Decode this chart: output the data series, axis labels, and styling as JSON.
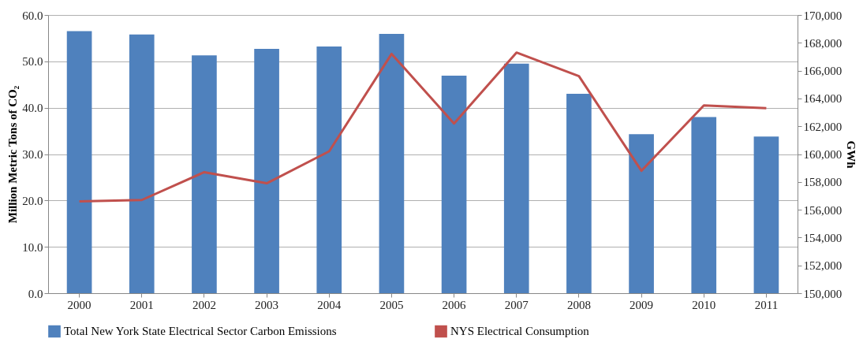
{
  "chart_data": {
    "type": "bar",
    "ylabel": "Million Metric Tons of CO₂",
    "y2label": "GWh",
    "categories": [
      "2000",
      "2001",
      "2002",
      "2003",
      "2004",
      "2005",
      "2006",
      "2007",
      "2008",
      "2009",
      "2010",
      "2011"
    ],
    "series": [
      {
        "name": "Total New York State Electrical Sector Carbon Emissions",
        "color": "#4f81bd",
        "values": [
          56.5,
          55.8,
          51.3,
          52.7,
          53.2,
          55.9,
          46.9,
          49.5,
          43.0,
          34.3,
          38.0,
          33.8
        ]
      },
      {
        "name": "NYS Electrical Consumption",
        "type": "line",
        "axis": "y2",
        "color": "#c0504d",
        "values": [
          156600,
          156700,
          158700,
          157900,
          160200,
          167200,
          162200,
          167300,
          165600,
          158800,
          163500,
          163300
        ]
      }
    ],
    "ylim": [
      0,
      60
    ],
    "yticks": [
      {
        "value": 0,
        "label": "0.0"
      },
      {
        "value": 10,
        "label": "10.0"
      },
      {
        "value": 20,
        "label": "20.0"
      },
      {
        "value": 30,
        "label": "30.0"
      },
      {
        "value": 40,
        "label": "40.0"
      },
      {
        "value": 50,
        "label": "50.0"
      },
      {
        "value": 60,
        "label": "60.0"
      }
    ],
    "y2lim": [
      150000,
      170000
    ],
    "y2ticks": [
      {
        "value": 150000,
        "label": "150,000"
      },
      {
        "value": 152000,
        "label": "152,000"
      },
      {
        "value": 154000,
        "label": "154,000"
      },
      {
        "value": 156000,
        "label": "156,000"
      },
      {
        "value": 158000,
        "label": "158,000"
      },
      {
        "value": 160000,
        "label": "160,000"
      },
      {
        "value": 162000,
        "label": "162,000"
      },
      {
        "value": 164000,
        "label": "164,000"
      },
      {
        "value": 166000,
        "label": "166,000"
      },
      {
        "value": 168000,
        "label": "168,000"
      },
      {
        "value": 170000,
        "label": "170,000"
      }
    ],
    "grid": "y",
    "legend": "bottom"
  }
}
